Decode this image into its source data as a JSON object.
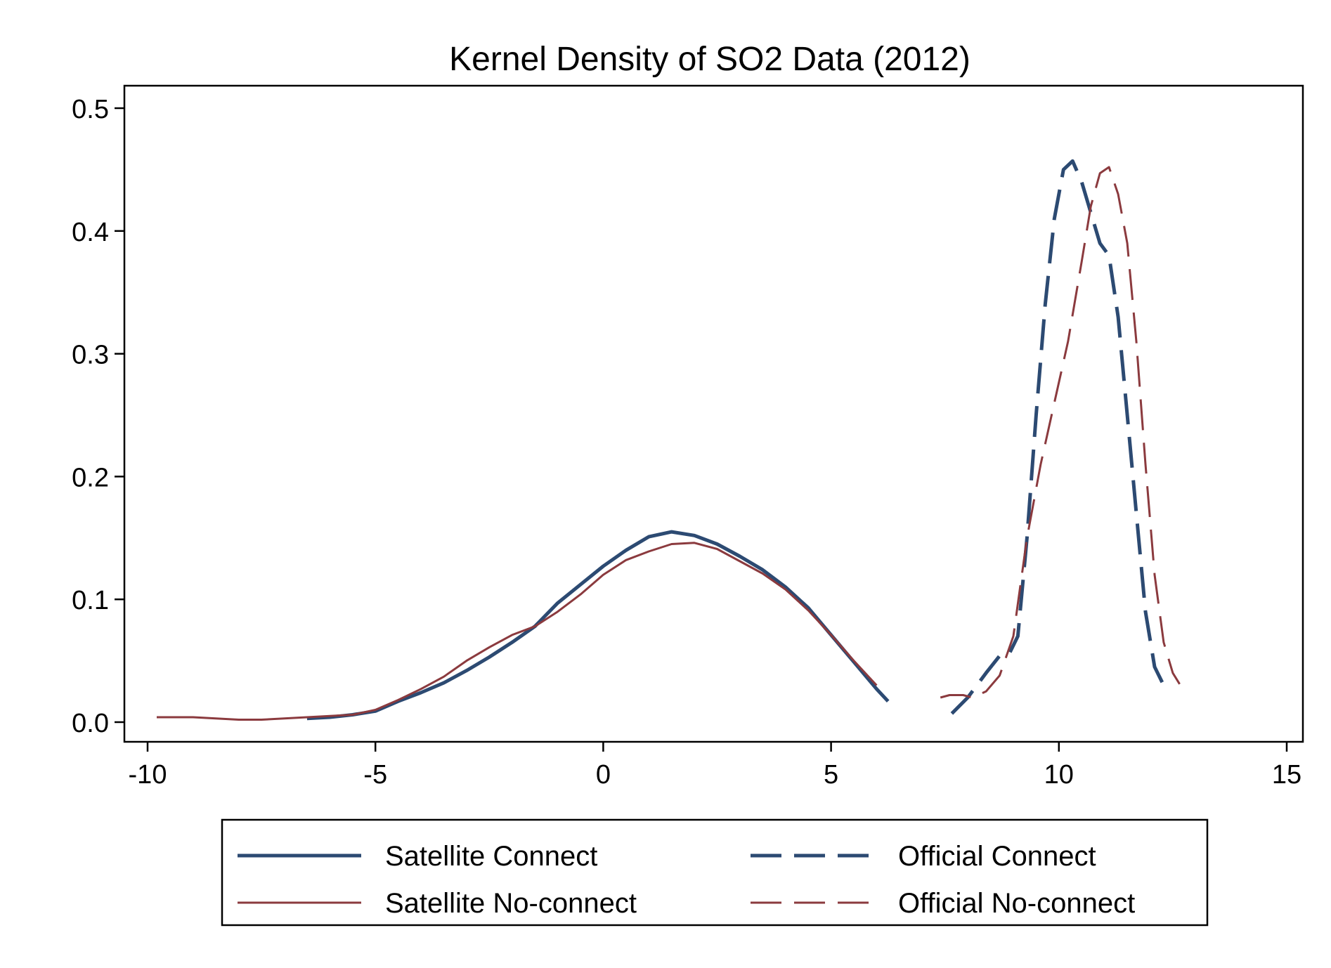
{
  "chart_data": {
    "type": "line",
    "title": "Kernel Density of SO2 Data (2012)",
    "xlabel": "",
    "ylabel": "",
    "xlim": [
      -10,
      15
    ],
    "ylim": [
      0,
      0.5
    ],
    "x_ticks": [
      -10,
      -5,
      0,
      5,
      10,
      15
    ],
    "y_ticks": [
      0,
      0.1,
      0.2,
      0.3,
      0.4,
      0.5
    ],
    "x_tick_labels": [
      "-10",
      "-5",
      "0",
      "5",
      "10",
      "15"
    ],
    "y_tick_labels": [
      "0.0",
      "0.1",
      "0.2",
      "0.3",
      "0.4",
      "0.5"
    ],
    "grid": false,
    "legend_position": "bottom",
    "series": [
      {
        "name": "Satellite Connect",
        "color": "#2c4a72",
        "dash": "solid",
        "weight": "thick",
        "points": [
          [
            -6.5,
            0.003
          ],
          [
            -6.0,
            0.004
          ],
          [
            -5.5,
            0.006
          ],
          [
            -5.0,
            0.009
          ],
          [
            -4.5,
            0.017
          ],
          [
            -4.0,
            0.024
          ],
          [
            -3.5,
            0.032
          ],
          [
            -3.0,
            0.042
          ],
          [
            -2.5,
            0.053
          ],
          [
            -2.0,
            0.065
          ],
          [
            -1.5,
            0.078
          ],
          [
            -1.0,
            0.097
          ],
          [
            -0.5,
            0.112
          ],
          [
            0.0,
            0.127
          ],
          [
            0.5,
            0.14
          ],
          [
            1.0,
            0.151
          ],
          [
            1.5,
            0.155
          ],
          [
            2.0,
            0.152
          ],
          [
            2.5,
            0.145
          ],
          [
            3.0,
            0.135
          ],
          [
            3.5,
            0.124
          ],
          [
            4.0,
            0.11
          ],
          [
            4.5,
            0.093
          ],
          [
            5.0,
            0.071
          ],
          [
            5.5,
            0.049
          ],
          [
            6.0,
            0.027
          ],
          [
            6.25,
            0.017
          ]
        ]
      },
      {
        "name": "Satellite No-connect",
        "color": "#8b3a3e",
        "dash": "solid",
        "weight": "thin",
        "points": [
          [
            -9.8,
            0.004
          ],
          [
            -9.0,
            0.004
          ],
          [
            -8.0,
            0.002
          ],
          [
            -7.5,
            0.002
          ],
          [
            -7.0,
            0.003
          ],
          [
            -6.5,
            0.004
          ],
          [
            -6.0,
            0.005
          ],
          [
            -5.5,
            0.006
          ],
          [
            -5.0,
            0.01
          ],
          [
            -4.5,
            0.018
          ],
          [
            -4.0,
            0.027
          ],
          [
            -3.5,
            0.037
          ],
          [
            -3.0,
            0.05
          ],
          [
            -2.5,
            0.061
          ],
          [
            -2.0,
            0.071
          ],
          [
            -1.5,
            0.078
          ],
          [
            -1.0,
            0.09
          ],
          [
            -0.5,
            0.104
          ],
          [
            0.0,
            0.12
          ],
          [
            0.5,
            0.132
          ],
          [
            1.0,
            0.139
          ],
          [
            1.5,
            0.145
          ],
          [
            2.0,
            0.146
          ],
          [
            2.5,
            0.141
          ],
          [
            3.0,
            0.131
          ],
          [
            3.5,
            0.121
          ],
          [
            4.0,
            0.108
          ],
          [
            4.5,
            0.091
          ],
          [
            5.0,
            0.071
          ],
          [
            5.5,
            0.05
          ],
          [
            6.0,
            0.03
          ]
        ]
      },
      {
        "name": "Official Connect",
        "color": "#2c4a72",
        "dash": "long",
        "weight": "thick",
        "points": [
          [
            7.65,
            0.007
          ],
          [
            8.0,
            0.02
          ],
          [
            8.4,
            0.04
          ],
          [
            8.7,
            0.054
          ],
          [
            8.9,
            0.055
          ],
          [
            9.1,
            0.07
          ],
          [
            9.3,
            0.15
          ],
          [
            9.5,
            0.25
          ],
          [
            9.7,
            0.34
          ],
          [
            9.9,
            0.41
          ],
          [
            10.1,
            0.45
          ],
          [
            10.3,
            0.457
          ],
          [
            10.5,
            0.44
          ],
          [
            10.7,
            0.415
          ],
          [
            10.9,
            0.39
          ],
          [
            11.1,
            0.38
          ],
          [
            11.3,
            0.33
          ],
          [
            11.5,
            0.25
          ],
          [
            11.7,
            0.17
          ],
          [
            11.9,
            0.09
          ],
          [
            12.1,
            0.045
          ],
          [
            12.3,
            0.03
          ]
        ]
      },
      {
        "name": "Official No-connect",
        "color": "#8b3a3e",
        "dash": "long",
        "weight": "thin",
        "points": [
          [
            7.4,
            0.02
          ],
          [
            7.6,
            0.022
          ],
          [
            7.9,
            0.022
          ],
          [
            8.1,
            0.02
          ],
          [
            8.4,
            0.025
          ],
          [
            8.7,
            0.038
          ],
          [
            9.0,
            0.07
          ],
          [
            9.3,
            0.15
          ],
          [
            9.6,
            0.21
          ],
          [
            9.9,
            0.26
          ],
          [
            10.2,
            0.31
          ],
          [
            10.5,
            0.375
          ],
          [
            10.7,
            0.42
          ],
          [
            10.9,
            0.447
          ],
          [
            11.1,
            0.452
          ],
          [
            11.3,
            0.43
          ],
          [
            11.5,
            0.39
          ],
          [
            11.7,
            0.31
          ],
          [
            11.9,
            0.21
          ],
          [
            12.1,
            0.12
          ],
          [
            12.3,
            0.065
          ],
          [
            12.5,
            0.04
          ],
          [
            12.65,
            0.031
          ]
        ]
      }
    ]
  }
}
